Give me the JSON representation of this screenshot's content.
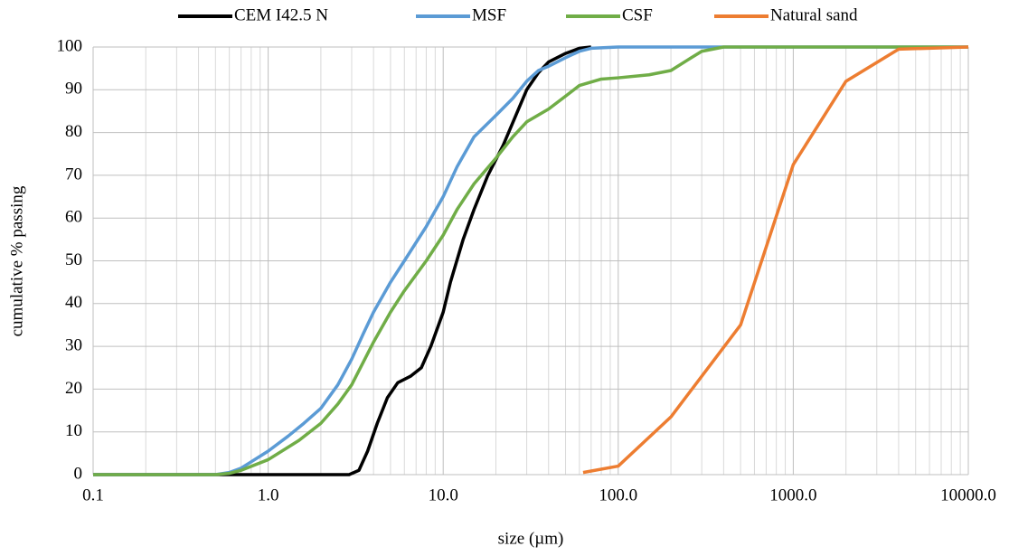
{
  "chart_data": {
    "type": "line",
    "x_label": "size (µm)",
    "y_label": "cumulative % passing",
    "xscale": "log",
    "xlim": [
      0.1,
      10000
    ],
    "ylim": [
      0,
      100
    ],
    "xticks": [
      0.1,
      {
        "value": 1,
        "label": "1.0"
      },
      {
        "value": 10,
        "label": "10.0"
      },
      {
        "value": 100,
        "label": "100.0"
      },
      {
        "value": 1000,
        "label": "1000.0"
      },
      {
        "value": 10000,
        "label": "10000.0"
      }
    ],
    "yticks": [
      0,
      10,
      20,
      30,
      40,
      50,
      60,
      70,
      80,
      90,
      100
    ],
    "grid": true,
    "minor_grid": true,
    "legend": "top",
    "series": [
      {
        "name": "CEM I42.5 N",
        "color": "#000000",
        "x": [
          0.1,
          0.7,
          1,
          2,
          2.9,
          3.3,
          3.7,
          4.2,
          4.8,
          5.5,
          6.5,
          7.5,
          8.5,
          10,
          11,
          13,
          15,
          18,
          22,
          26,
          30,
          35,
          40,
          50,
          60,
          70
        ],
        "values": [
          0,
          0,
          0,
          0,
          0,
          1,
          5.5,
          12,
          18,
          21.5,
          23,
          25,
          30,
          38,
          45,
          55,
          62,
          70,
          77,
          84,
          90,
          94,
          96.5,
          98.5,
          99.7,
          100
        ]
      },
      {
        "name": "MSF",
        "color": "#5b9bd5",
        "x": [
          0.1,
          0.5,
          0.6,
          0.7,
          0.8,
          1,
          1.3,
          1.6,
          2,
          2.5,
          3,
          3.5,
          4,
          5,
          6,
          8,
          10,
          12,
          15,
          20,
          25,
          30,
          35,
          40,
          50,
          60,
          70,
          100,
          10000
        ],
        "values": [
          0,
          0,
          0.5,
          1.5,
          3,
          5.5,
          9,
          12,
          15.5,
          21,
          27,
          33,
          38,
          45,
          50,
          58,
          65,
          72,
          79,
          84,
          88,
          92,
          94.5,
          95.5,
          97.5,
          99,
          99.7,
          100,
          100
        ]
      },
      {
        "name": "CSF",
        "color": "#70ad47",
        "x": [
          0.1,
          0.5,
          0.6,
          0.7,
          1,
          1.5,
          2,
          2.5,
          3,
          4,
          5,
          6,
          8,
          10,
          12,
          15,
          20,
          25,
          30,
          40,
          50,
          60,
          80,
          100,
          150,
          200,
          250,
          300,
          400,
          10000
        ],
        "values": [
          0,
          0,
          0.3,
          1,
          3.5,
          8,
          12,
          16.5,
          21,
          31,
          38,
          43,
          50,
          56,
          62,
          68,
          74,
          79,
          82.5,
          85.5,
          88.5,
          91,
          92.5,
          92.8,
          93.5,
          94.5,
          97,
          99,
          100,
          100
        ]
      },
      {
        "name": "Natural sand",
        "color": "#ed7d31",
        "x": [
          63,
          100,
          200,
          500,
          1000,
          2000,
          4000,
          10000
        ],
        "values": [
          0.5,
          2,
          13.5,
          35,
          72.5,
          92,
          99.5,
          100
        ]
      }
    ]
  }
}
